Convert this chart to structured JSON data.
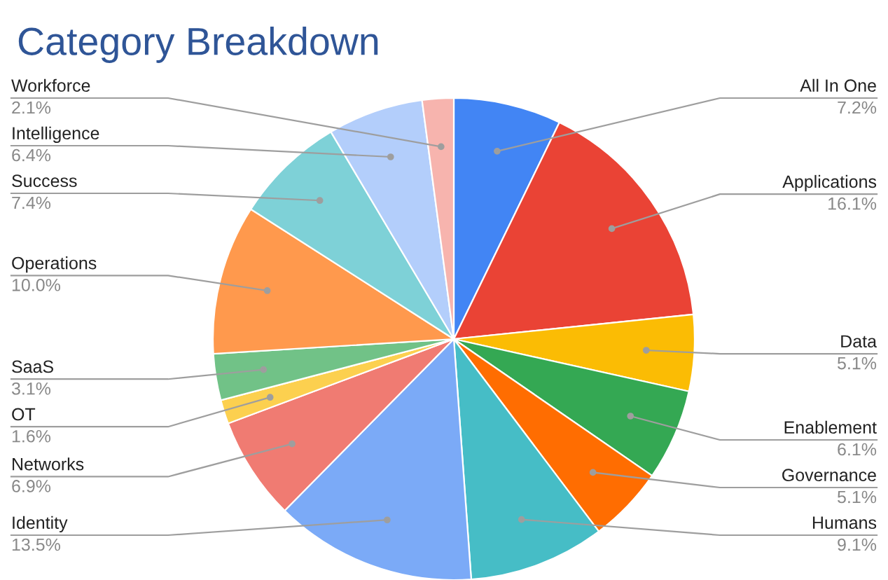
{
  "chart_data": {
    "type": "pie",
    "title": "Category Breakdown",
    "categories": [
      "All In One",
      "Applications",
      "Data",
      "Enablement",
      "Governance",
      "Humans",
      "Identity",
      "Networks",
      "OT",
      "SaaS",
      "Operations",
      "Success",
      "Intelligence",
      "Workforce"
    ],
    "values": [
      7.2,
      16.1,
      5.1,
      6.1,
      5.1,
      9.1,
      13.5,
      6.9,
      1.6,
      3.1,
      10.0,
      7.4,
      6.4,
      2.1
    ],
    "value_labels": [
      "7.2%",
      "16.1%",
      "5.1%",
      "6.1%",
      "5.1%",
      "9.1%",
      "13.5%",
      "6.9%",
      "1.6%",
      "3.1%",
      "10.0%",
      "7.4%",
      "6.4%",
      "2.1%"
    ],
    "colors": [
      "#4285f4",
      "#ea4335",
      "#fbbc04",
      "#34a853",
      "#ff6d01",
      "#46bdc6",
      "#7baaf7",
      "#f07b72",
      "#fcd04f",
      "#71c287",
      "#ff994d",
      "#7ed1d7",
      "#b3cefb",
      "#f7b4ae"
    ],
    "legend": false
  }
}
